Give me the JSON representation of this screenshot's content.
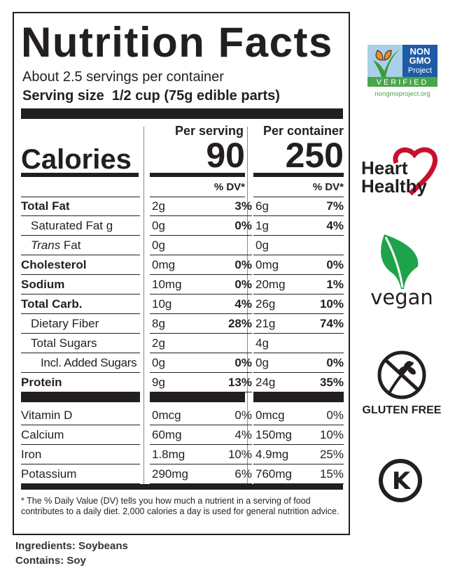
{
  "label": {
    "title": "Nutrition Facts",
    "servings_per_container": "About 2.5 servings per container",
    "serving_size_label": "Serving size",
    "serving_size_value": "1/2 cup (75g edible parts)",
    "per_serving_header": "Per serving",
    "per_container_header": "Per container",
    "calories_label": "Calories",
    "calories_per_serving": "90",
    "calories_per_container": "250",
    "dv_header": "% DV*",
    "nutrients": [
      {
        "name": "Total Fat",
        "bold": true,
        "s_amt": "2g",
        "s_dv": "3%",
        "c_amt": "6g",
        "c_dv": "7%"
      },
      {
        "name": "Saturated Fat g",
        "indent": 1,
        "s_amt": "0g",
        "s_dv": "0%",
        "c_amt": "1g",
        "c_dv": "4%"
      },
      {
        "name_italic": "Trans",
        "name_rest": " Fat",
        "indent": 1,
        "s_amt": "0g",
        "s_dv": "",
        "c_amt": "0g",
        "c_dv": ""
      },
      {
        "name": "Cholesterol",
        "bold": true,
        "s_amt": "0mg",
        "s_dv": "0%",
        "c_amt": "0mg",
        "c_dv": "0%"
      },
      {
        "name": "Sodium",
        "bold": true,
        "s_amt": "10mg",
        "s_dv": "0%",
        "c_amt": "20mg",
        "c_dv": "1%"
      },
      {
        "name": "Total Carb.",
        "bold": true,
        "s_amt": "10g",
        "s_dv": "4%",
        "c_amt": "26g",
        "c_dv": "10%"
      },
      {
        "name": "Dietary Fiber",
        "indent": 1,
        "s_amt": "8g",
        "s_dv": "28%",
        "c_amt": "21g",
        "c_dv": "74%"
      },
      {
        "name": "Total Sugars",
        "indent": 1,
        "s_amt": "2g",
        "s_dv": "",
        "c_amt": "4g",
        "c_dv": ""
      },
      {
        "name": "Incl. Added Sugars",
        "indent": 2,
        "s_amt": "0g",
        "s_dv": "0%",
        "c_amt": "0g",
        "c_dv": "0%"
      },
      {
        "name": "Protein",
        "bold": true,
        "s_amt": "9g",
        "s_dv": "13%",
        "c_amt": "24g",
        "c_dv": "35%"
      }
    ],
    "vitamins": [
      {
        "name": "Vitamin D",
        "s_amt": "0mcg",
        "s_dv": "0%",
        "c_amt": "0mcg",
        "c_dv": "0%"
      },
      {
        "name": "Calcium",
        "s_amt": "60mg",
        "s_dv": "4%",
        "c_amt": "150mg",
        "c_dv": "10%"
      },
      {
        "name": "Iron",
        "s_amt": "1.8mg",
        "s_dv": "10%",
        "c_amt": "4.9mg",
        "c_dv": "25%"
      },
      {
        "name": "Potassium",
        "s_amt": "290mg",
        "s_dv": "6%",
        "c_amt": "760mg",
        "c_dv": "15%"
      }
    ],
    "footnote": "* The % Daily Value (DV) tells you how much a nutrient in a serving of food contributes to a daily diet. 2,000 calories a day is used for general nutrition advice."
  },
  "ingredients": "Ingredients: Soybeans",
  "contains": "Contains: Soy",
  "badges": {
    "nongmo": {
      "line1": "NON",
      "line2": "GMO",
      "line3": "Project",
      "verified": "VERIFIED",
      "url": "nongmoproject.org"
    },
    "heart": {
      "line1": "Heart",
      "line2": "Healthy",
      "color": "#c8102e"
    },
    "vegan": {
      "label": "vegan",
      "color": "#1fa34a"
    },
    "gluten": {
      "label": "GLUTEN FREE"
    },
    "kosher": {
      "symbol": "K"
    }
  }
}
